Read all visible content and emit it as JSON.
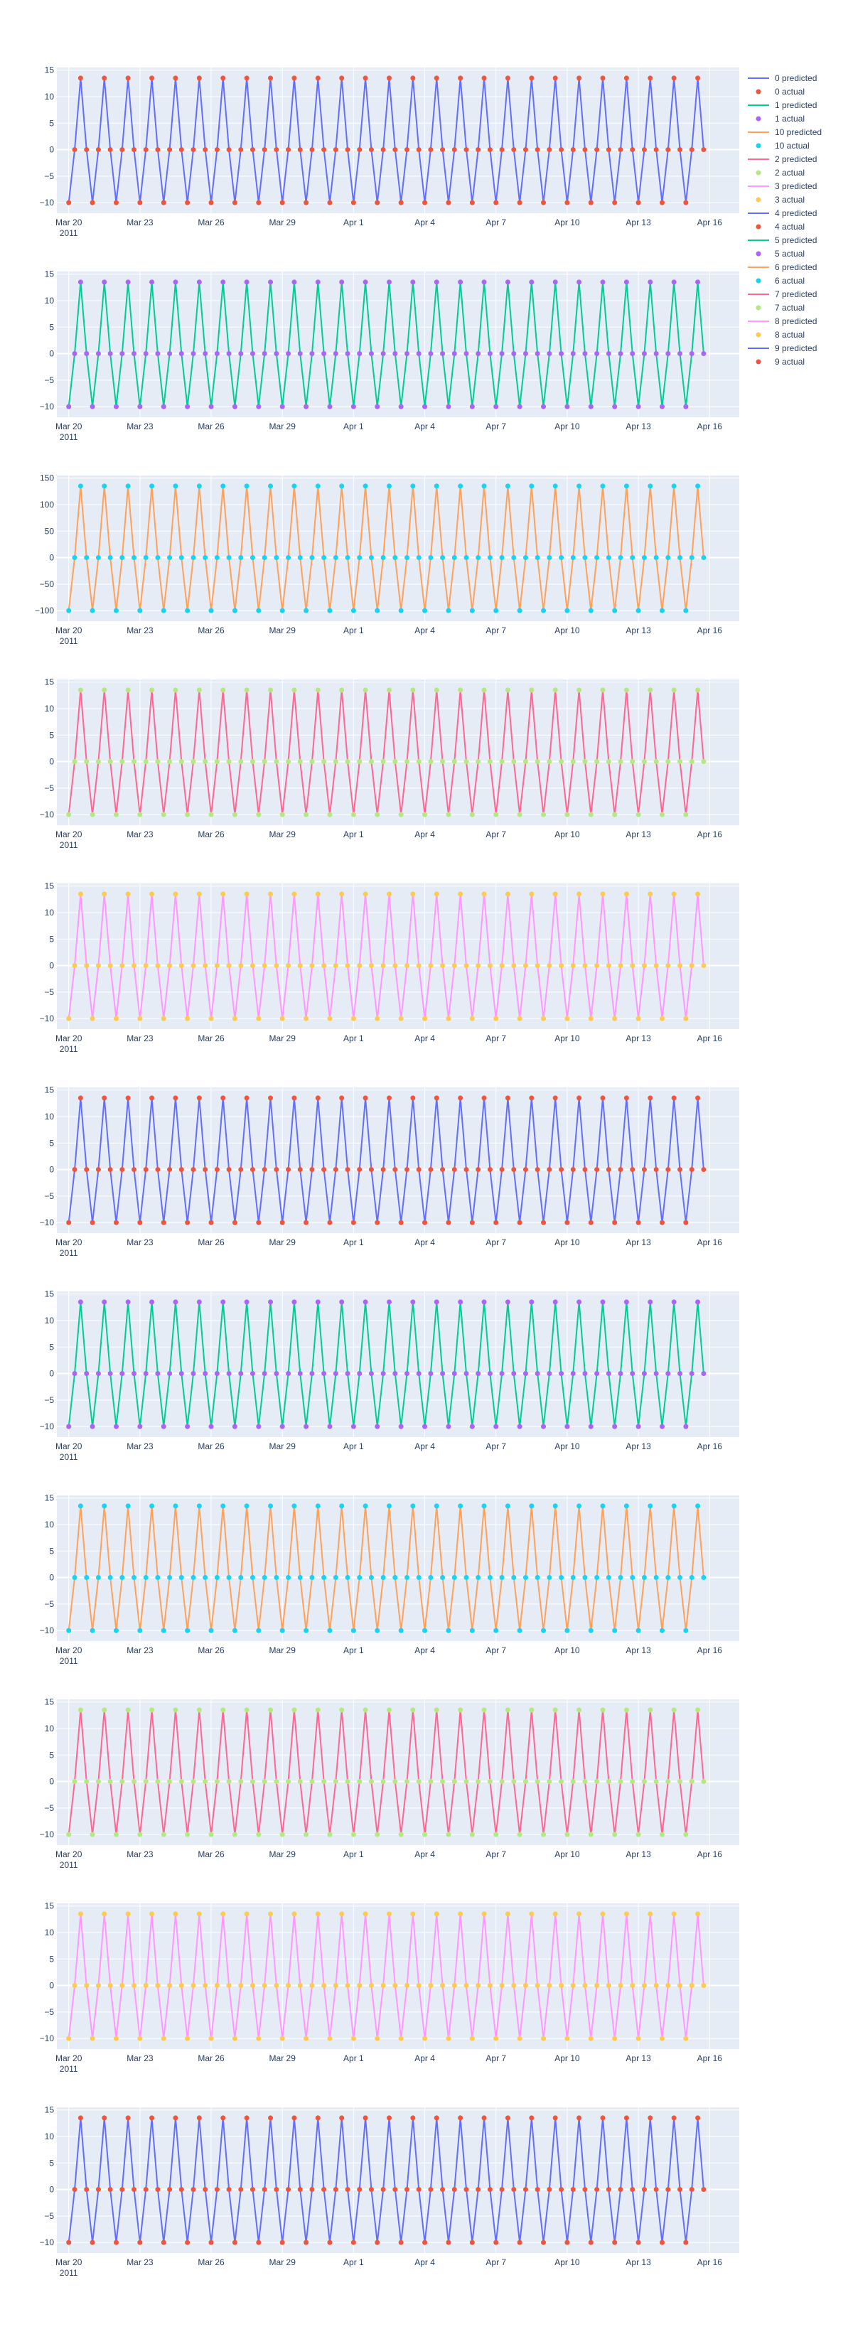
{
  "colors": {
    "plot_bg": "#E5ECF6",
    "grid": "#ffffff",
    "tick_text": "#2a3f5f",
    "legend_text": "#2a3f5f"
  },
  "x_axis": {
    "range": [
      "2011-03-19T12:00:00",
      "2011-04-17T06:00:00"
    ],
    "ticks": [
      {
        "date": "2011-03-20",
        "label": "Mar 20",
        "year_label": "2011"
      },
      {
        "date": "2011-03-23",
        "label": "Mar 23"
      },
      {
        "date": "2011-03-26",
        "label": "Mar 26"
      },
      {
        "date": "2011-03-29",
        "label": "Mar 29"
      },
      {
        "date": "2011-04-01",
        "label": "Apr 1"
      },
      {
        "date": "2011-04-04",
        "label": "Apr 4"
      },
      {
        "date": "2011-04-07",
        "label": "Apr 7"
      },
      {
        "date": "2011-04-10",
        "label": "Apr 10"
      },
      {
        "date": "2011-04-13",
        "label": "Apr 13"
      },
      {
        "date": "2011-04-16",
        "label": "Apr 16"
      }
    ]
  },
  "legend": {
    "placement": "right",
    "entries": [
      {
        "label": "0 predicted",
        "kind": "line",
        "color": "#636EFA"
      },
      {
        "label": "0 actual",
        "kind": "marker",
        "color": "#EF553B"
      },
      {
        "label": "1 predicted",
        "kind": "line",
        "color": "#00CC96"
      },
      {
        "label": "1 actual",
        "kind": "marker",
        "color": "#AB63FA"
      },
      {
        "label": "10 predicted",
        "kind": "line",
        "color": "#FFA15A"
      },
      {
        "label": "10 actual",
        "kind": "marker",
        "color": "#19D3F3"
      },
      {
        "label": "2 predicted",
        "kind": "line",
        "color": "#FF6692"
      },
      {
        "label": "2 actual",
        "kind": "marker",
        "color": "#B6E880"
      },
      {
        "label": "3 predicted",
        "kind": "line",
        "color": "#FF97FF"
      },
      {
        "label": "3 actual",
        "kind": "marker",
        "color": "#FECB52"
      },
      {
        "label": "4 predicted",
        "kind": "line",
        "color": "#636EFA"
      },
      {
        "label": "4 actual",
        "kind": "marker",
        "color": "#EF553B"
      },
      {
        "label": "5 predicted",
        "kind": "line",
        "color": "#00CC96"
      },
      {
        "label": "5 actual",
        "kind": "marker",
        "color": "#AB63FA"
      },
      {
        "label": "6 predicted",
        "kind": "line",
        "color": "#FFA15A"
      },
      {
        "label": "6 actual",
        "kind": "marker",
        "color": "#19D3F3"
      },
      {
        "label": "7 predicted",
        "kind": "line",
        "color": "#FF6692"
      },
      {
        "label": "7 actual",
        "kind": "marker",
        "color": "#B6E880"
      },
      {
        "label": "8 predicted",
        "kind": "line",
        "color": "#FF97FF"
      },
      {
        "label": "8 actual",
        "kind": "marker",
        "color": "#FECB52"
      },
      {
        "label": "9 predicted",
        "kind": "line",
        "color": "#636EFA"
      },
      {
        "label": "9 actual",
        "kind": "marker",
        "color": "#EF553B"
      }
    ]
  },
  "chart_data": [
    {
      "type": "line",
      "series": [
        {
          "name": "0 predicted",
          "color": "#636EFA",
          "mode": "line"
        },
        {
          "name": "0 actual",
          "color": "#EF553B",
          "mode": "markers"
        }
      ],
      "x_start": "2011-03-20T00:00:00",
      "x_step_hours": 6,
      "points_per_series": 108,
      "daily_pattern": {
        "hours": [
          0,
          6,
          12,
          18
        ],
        "values": [
          -10,
          0,
          13.5,
          0
        ]
      },
      "approx_note": "",
      "ylim": [
        -12,
        15.5
      ],
      "y_ticks": [
        -10,
        -5,
        0,
        5,
        10,
        15
      ],
      "grid": true
    },
    {
      "type": "line",
      "series": [
        {
          "name": "1 predicted",
          "color": "#00CC96",
          "mode": "line"
        },
        {
          "name": "1 actual",
          "color": "#AB63FA",
          "mode": "markers"
        }
      ],
      "x_start": "2011-03-20T00:00:00",
      "x_step_hours": 6,
      "points_per_series": 108,
      "daily_pattern": {
        "hours": [
          0,
          6,
          12,
          18
        ],
        "values": [
          -10,
          0,
          13.5,
          0
        ]
      },
      "ylim": [
        -12,
        15.5
      ],
      "y_ticks": [
        -10,
        -5,
        0,
        5,
        10,
        15
      ],
      "grid": true
    },
    {
      "type": "line",
      "series": [
        {
          "name": "10 predicted",
          "color": "#FFA15A",
          "mode": "line"
        },
        {
          "name": "10 actual",
          "color": "#19D3F3",
          "mode": "markers"
        }
      ],
      "x_start": "2011-03-20T00:00:00",
      "x_step_hours": 6,
      "points_per_series": 108,
      "daily_pattern": {
        "hours": [
          0,
          6,
          12,
          18
        ],
        "values": [
          -100,
          0,
          135,
          0
        ]
      },
      "ylim": [
        -120,
        155
      ],
      "y_ticks": [
        -100,
        -50,
        0,
        50,
        100,
        150
      ],
      "grid": true
    },
    {
      "type": "line",
      "series": [
        {
          "name": "2 predicted",
          "color": "#FF6692",
          "mode": "line"
        },
        {
          "name": "2 actual",
          "color": "#B6E880",
          "mode": "markers"
        }
      ],
      "x_start": "2011-03-20T00:00:00",
      "x_step_hours": 6,
      "points_per_series": 108,
      "daily_pattern": {
        "hours": [
          0,
          6,
          12,
          18
        ],
        "values": [
          -10,
          0,
          13.5,
          0
        ]
      },
      "ylim": [
        -12,
        15.5
      ],
      "y_ticks": [
        -10,
        -5,
        0,
        5,
        10,
        15
      ],
      "grid": true
    },
    {
      "type": "line",
      "series": [
        {
          "name": "3 predicted",
          "color": "#FF97FF",
          "mode": "line"
        },
        {
          "name": "3 actual",
          "color": "#FECB52",
          "mode": "markers"
        }
      ],
      "x_start": "2011-03-20T00:00:00",
      "x_step_hours": 6,
      "points_per_series": 108,
      "daily_pattern": {
        "hours": [
          0,
          6,
          12,
          18
        ],
        "values": [
          -10,
          0,
          13.5,
          0
        ]
      },
      "ylim": [
        -12,
        15.5
      ],
      "y_ticks": [
        -10,
        -5,
        0,
        5,
        10,
        15
      ],
      "grid": true
    },
    {
      "type": "line",
      "series": [
        {
          "name": "4 predicted",
          "color": "#636EFA",
          "mode": "line"
        },
        {
          "name": "4 actual",
          "color": "#EF553B",
          "mode": "markers"
        }
      ],
      "x_start": "2011-03-20T00:00:00",
      "x_step_hours": 6,
      "points_per_series": 108,
      "daily_pattern": {
        "hours": [
          0,
          6,
          12,
          18
        ],
        "values": [
          -10,
          0,
          13.5,
          0
        ]
      },
      "ylim": [
        -12,
        15.5
      ],
      "y_ticks": [
        -10,
        -5,
        0,
        5,
        10,
        15
      ],
      "grid": true
    },
    {
      "type": "line",
      "series": [
        {
          "name": "5 predicted",
          "color": "#00CC96",
          "mode": "line"
        },
        {
          "name": "5 actual",
          "color": "#AB63FA",
          "mode": "markers"
        }
      ],
      "x_start": "2011-03-20T00:00:00",
      "x_step_hours": 6,
      "points_per_series": 108,
      "daily_pattern": {
        "hours": [
          0,
          6,
          12,
          18
        ],
        "values": [
          -10,
          0,
          13.5,
          0
        ]
      },
      "ylim": [
        -12,
        15.5
      ],
      "y_ticks": [
        -10,
        -5,
        0,
        5,
        10,
        15
      ],
      "grid": true
    },
    {
      "type": "line",
      "series": [
        {
          "name": "6 predicted",
          "color": "#FFA15A",
          "mode": "line"
        },
        {
          "name": "6 actual",
          "color": "#19D3F3",
          "mode": "markers"
        }
      ],
      "x_start": "2011-03-20T00:00:00",
      "x_step_hours": 6,
      "points_per_series": 108,
      "daily_pattern": {
        "hours": [
          0,
          6,
          12,
          18
        ],
        "values": [
          -10,
          0,
          13.5,
          0
        ]
      },
      "ylim": [
        -12,
        15.5
      ],
      "y_ticks": [
        -10,
        -5,
        0,
        5,
        10,
        15
      ],
      "grid": true
    },
    {
      "type": "line",
      "series": [
        {
          "name": "7 predicted",
          "color": "#FF6692",
          "mode": "line"
        },
        {
          "name": "7 actual",
          "color": "#B6E880",
          "mode": "markers"
        }
      ],
      "x_start": "2011-03-20T00:00:00",
      "x_step_hours": 6,
      "points_per_series": 108,
      "daily_pattern": {
        "hours": [
          0,
          6,
          12,
          18
        ],
        "values": [
          -10,
          0,
          13.5,
          0
        ]
      },
      "ylim": [
        -12,
        15.5
      ],
      "y_ticks": [
        -10,
        -5,
        0,
        5,
        10,
        15
      ],
      "grid": true
    },
    {
      "type": "line",
      "series": [
        {
          "name": "8 predicted",
          "color": "#FF97FF",
          "mode": "line"
        },
        {
          "name": "8 actual",
          "color": "#FECB52",
          "mode": "markers"
        }
      ],
      "x_start": "2011-03-20T00:00:00",
      "x_step_hours": 6,
      "points_per_series": 108,
      "daily_pattern": {
        "hours": [
          0,
          6,
          12,
          18
        ],
        "values": [
          -10,
          0,
          13.5,
          0
        ]
      },
      "ylim": [
        -12,
        15.5
      ],
      "y_ticks": [
        -10,
        -5,
        0,
        5,
        10,
        15
      ],
      "grid": true
    },
    {
      "type": "line",
      "series": [
        {
          "name": "9 predicted",
          "color": "#636EFA",
          "mode": "line"
        },
        {
          "name": "9 actual",
          "color": "#EF553B",
          "mode": "markers"
        }
      ],
      "x_start": "2011-03-20T00:00:00",
      "x_step_hours": 6,
      "points_per_series": 108,
      "daily_pattern": {
        "hours": [
          0,
          6,
          12,
          18
        ],
        "values": [
          -10,
          0,
          13.5,
          0
        ]
      },
      "ylim": [
        -12,
        15.5
      ],
      "y_ticks": [
        -10,
        -5,
        0,
        5,
        10,
        15
      ],
      "grid": true
    }
  ]
}
